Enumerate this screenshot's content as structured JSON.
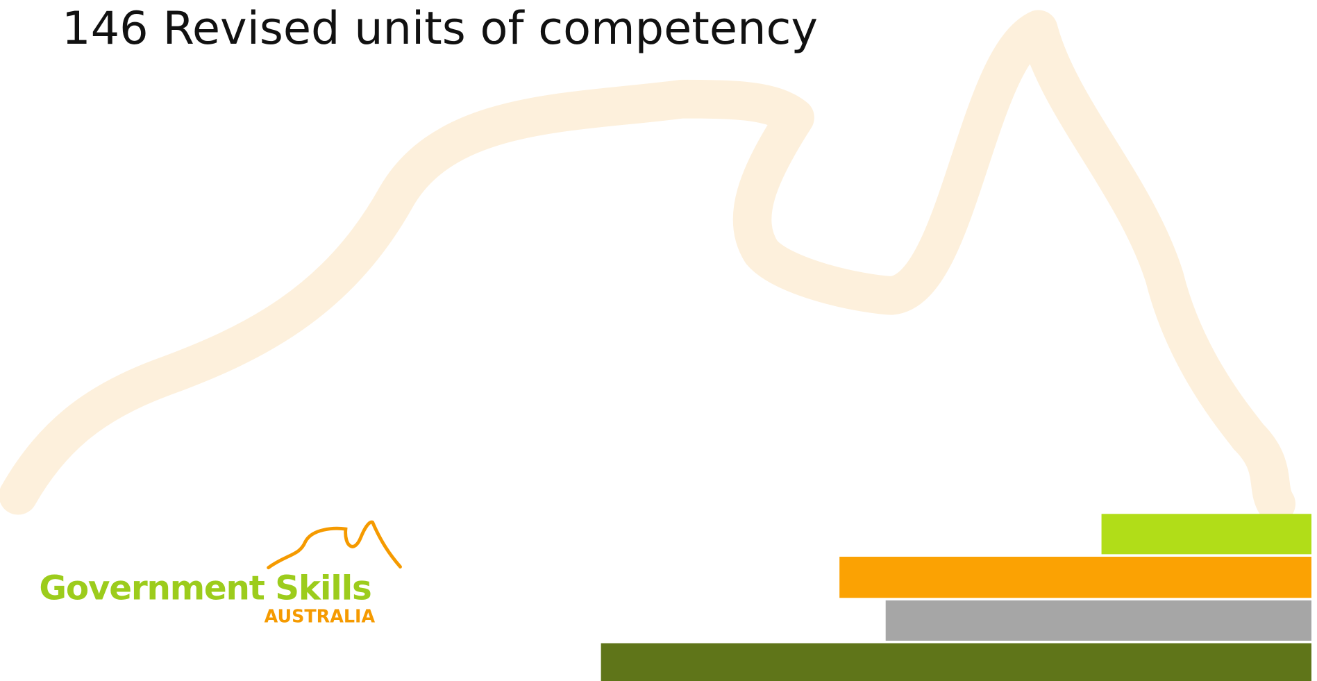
{
  "header": {
    "title": "146 Revised units of competency"
  },
  "logo": {
    "name": "Government Skills",
    "country": "AUSTRALIA"
  }
}
